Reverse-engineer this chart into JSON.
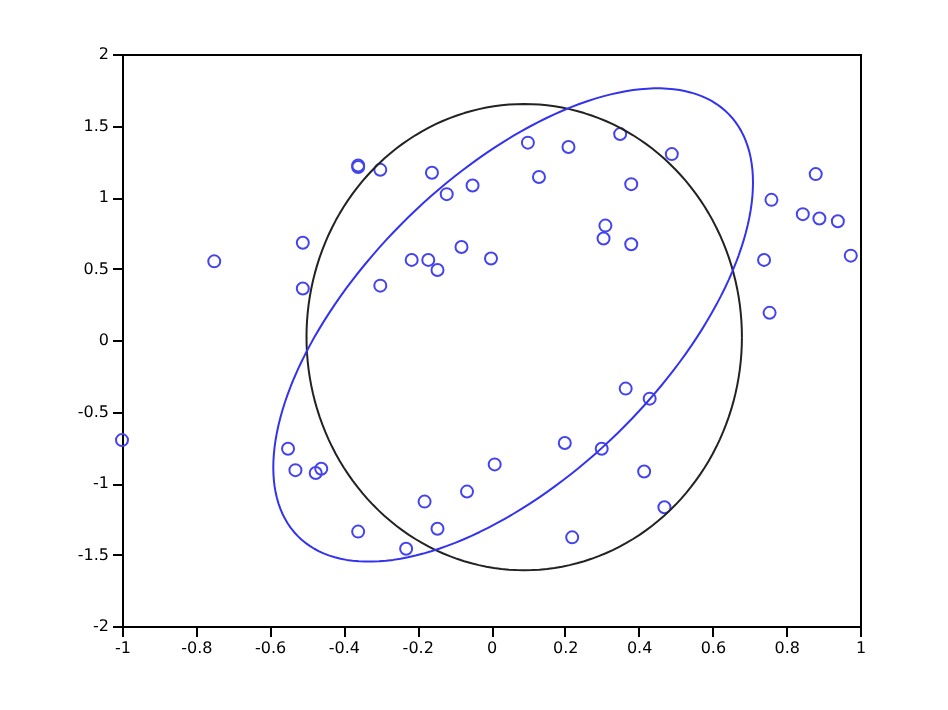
{
  "chart_data": {
    "type": "scatter",
    "xlim": [
      -1,
      1
    ],
    "ylim": [
      -2,
      2
    ],
    "xticks": [
      -1,
      -0.8,
      -0.6,
      -0.4,
      -0.2,
      0,
      0.2,
      0.4,
      0.6,
      0.8,
      1
    ],
    "yticks": [
      -2,
      -1.5,
      -1,
      -0.5,
      0,
      0.5,
      1,
      1.5,
      2
    ],
    "grid": false,
    "series": [
      {
        "marker": "circle",
        "color": "#4444ee",
        "x": [
          -0.75,
          -0.51,
          -0.51,
          -0.36,
          -0.36,
          -0.3,
          -0.215,
          -0.3,
          -0.16,
          -0.12,
          -0.05,
          -0.17,
          -0.145,
          -0.08,
          0.0,
          0.1,
          0.21,
          0.35,
          0.49,
          0.13,
          0.38,
          0.31,
          0.305,
          0.38,
          0.76,
          0.88,
          0.845,
          0.89,
          0.94,
          0.975,
          0.74,
          0.755,
          -1.0,
          -0.55,
          -0.53,
          -0.475,
          -0.46,
          -0.36,
          -0.23,
          -0.18,
          -0.145,
          -0.065,
          0.01,
          0.365,
          0.43,
          0.2,
          0.3,
          0.415,
          0.47,
          0.22
        ],
        "values": [
          0.55,
          0.68,
          0.36,
          1.21,
          1.22,
          1.19,
          0.56,
          0.38,
          1.17,
          1.02,
          1.08,
          0.56,
          0.49,
          0.65,
          0.57,
          1.38,
          1.35,
          1.44,
          1.3,
          1.14,
          1.09,
          0.8,
          0.71,
          0.67,
          0.98,
          1.16,
          0.88,
          0.85,
          0.83,
          0.59,
          0.56,
          0.19,
          -0.7,
          -0.76,
          -0.91,
          -0.93,
          -0.9,
          -1.34,
          -1.46,
          -1.13,
          -1.32,
          -1.06,
          -0.87,
          -0.34,
          -0.41,
          -0.72,
          -0.76,
          -0.92,
          -1.17,
          -1.38
        ]
      }
    ]
  }
}
